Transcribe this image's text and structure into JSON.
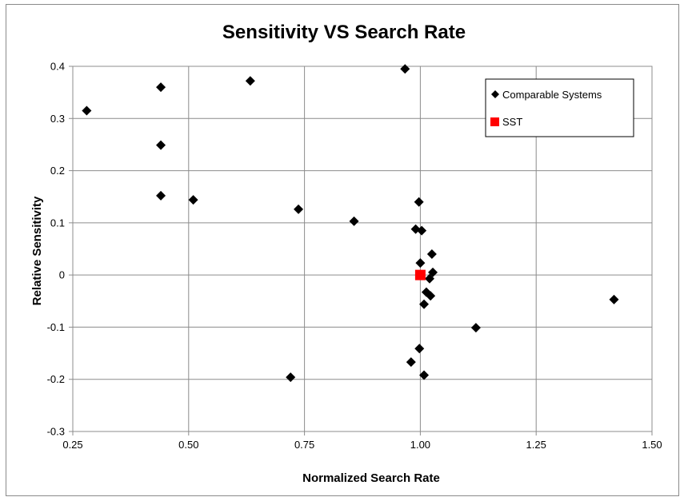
{
  "chart_data": {
    "type": "scatter",
    "title": "Sensitivity VS Search Rate",
    "xlabel": "Normalized Search Rate",
    "ylabel": "Relative Sensitivity",
    "xlim": [
      0.25,
      1.5
    ],
    "ylim": [
      -0.3,
      0.4
    ],
    "xticks": [
      "0.25",
      "0.50",
      "0.75",
      "1.00",
      "1.25",
      "1.50"
    ],
    "yticks": [
      "0.4",
      "0.3",
      "0.2",
      "0.1",
      "0",
      "-0.1",
      "-0.2",
      "-0.3"
    ],
    "grid": true,
    "legend_position": "top-right",
    "series": [
      {
        "name": "Comparable Systems",
        "marker": "diamond",
        "color": "#000000",
        "points": [
          {
            "x": 0.28,
            "y": 0.315
          },
          {
            "x": 0.44,
            "y": 0.36
          },
          {
            "x": 0.44,
            "y": 0.249
          },
          {
            "x": 0.44,
            "y": 0.152
          },
          {
            "x": 0.51,
            "y": 0.144
          },
          {
            "x": 0.633,
            "y": 0.372
          },
          {
            "x": 0.72,
            "y": -0.196
          },
          {
            "x": 0.737,
            "y": 0.126
          },
          {
            "x": 0.857,
            "y": 0.103
          },
          {
            "x": 0.967,
            "y": 0.395
          },
          {
            "x": 0.98,
            "y": -0.167
          },
          {
            "x": 0.99,
            "y": 0.088
          },
          {
            "x": 0.997,
            "y": 0.14
          },
          {
            "x": 0.998,
            "y": -0.141
          },
          {
            "x": 1.0,
            "y": 0.023
          },
          {
            "x": 1.003,
            "y": 0.085
          },
          {
            "x": 1.008,
            "y": -0.056
          },
          {
            "x": 1.008,
            "y": -0.192
          },
          {
            "x": 1.013,
            "y": -0.033
          },
          {
            "x": 1.02,
            "y": -0.007
          },
          {
            "x": 1.022,
            "y": -0.04
          },
          {
            "x": 1.025,
            "y": 0.04
          },
          {
            "x": 1.027,
            "y": 0.005
          },
          {
            "x": 1.12,
            "y": -0.101
          },
          {
            "x": 1.418,
            "y": -0.047
          }
        ]
      },
      {
        "name": "SST",
        "marker": "square",
        "color": "#ff0000",
        "points": [
          {
            "x": 1.0,
            "y": 0.0
          }
        ]
      }
    ]
  }
}
